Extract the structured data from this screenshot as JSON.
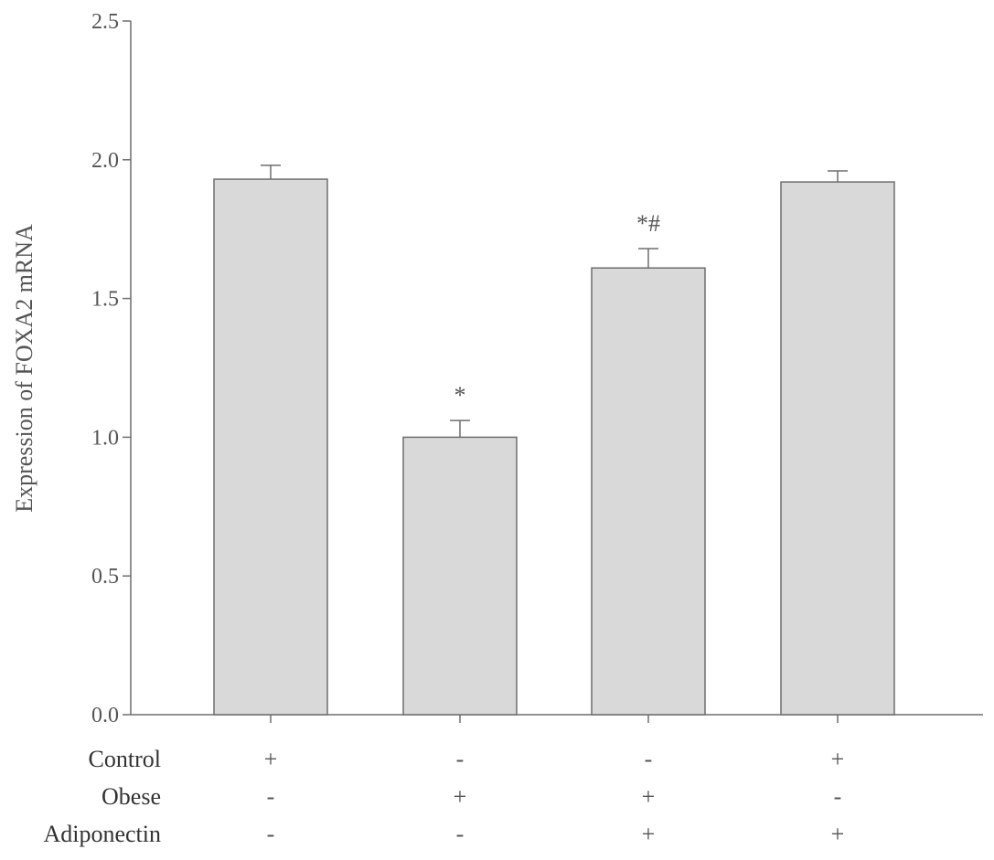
{
  "chart_data": {
    "type": "bar",
    "title": "",
    "xlabel": "",
    "ylabel": "Expression of FOXA2 mRNA",
    "ylim": [
      0,
      2.5
    ],
    "yticks": [
      "0.0",
      "0.5",
      "1.0",
      "1.5",
      "2.0",
      "2.5"
    ],
    "grid": false,
    "values": [
      1.93,
      1.0,
      1.61,
      1.92
    ],
    "errors": [
      0.05,
      0.06,
      0.07,
      0.04
    ],
    "annotations": [
      "",
      "*",
      "*#",
      ""
    ],
    "conditions": [
      {
        "label": "Control",
        "signs": [
          "+",
          "-",
          "-",
          "+"
        ]
      },
      {
        "label": "Obese",
        "signs": [
          "-",
          "+",
          "+",
          "-"
        ]
      },
      {
        "label": "Adiponectin",
        "signs": [
          "-",
          "-",
          "+",
          "+"
        ]
      }
    ],
    "colors": {
      "bar_fill": "#d9d9d9",
      "bar_stroke": "#6e6e6e",
      "axis": "#6e6e6e"
    }
  }
}
